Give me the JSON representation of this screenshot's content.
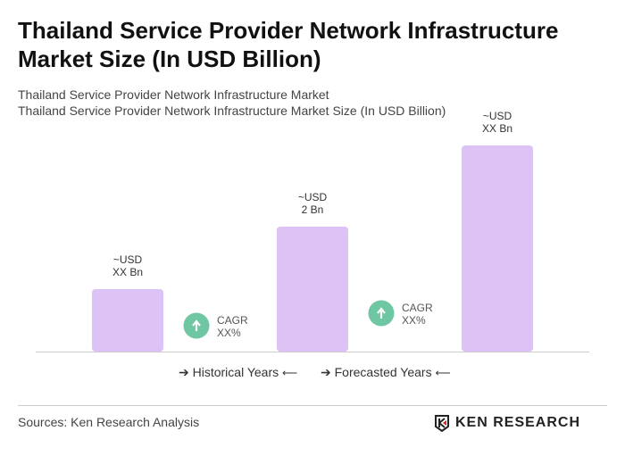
{
  "title": "Thailand Service Provider Network Infrastructure Market Size (In USD Billion)",
  "subtitle1": "Thailand Service Provider Network Infrastructure Market",
  "subtitle2": "Thailand Service Provider Network Infrastructure Market Size (In USD Billion)",
  "chart_data": {
    "type": "bar",
    "categories": [
      "",
      "",
      ""
    ],
    "values": [
      1.0,
      2.0,
      3.3
    ],
    "data_labels": [
      [
        "~USD",
        "XX Bn"
      ],
      [
        "~USD",
        "2 Bn"
      ],
      [
        "~USD",
        "XX Bn"
      ]
    ],
    "cagr": [
      {
        "label": "CAGR",
        "value": "XX%"
      },
      {
        "label": "CAGR",
        "value": "XX%"
      }
    ],
    "bar_color": "#dcc2f5",
    "cagr_color": "#6fc6a3",
    "ylim": [
      0,
      3.4
    ],
    "grid": false
  },
  "legend": {
    "historical": "Historical Years",
    "forecasted": "Forecasted Years"
  },
  "source": "Sources: Ken Research Analysis",
  "logo": "KEN RESEARCH"
}
